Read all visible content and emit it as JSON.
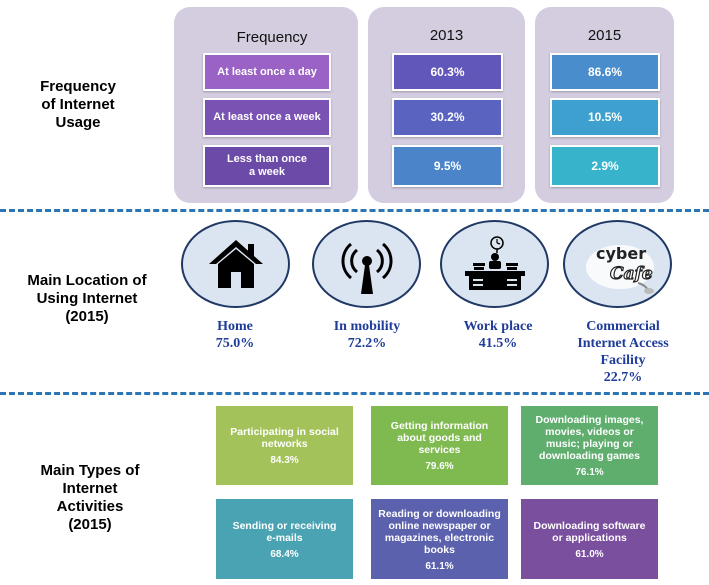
{
  "frequency": {
    "section_label": [
      "Frequency",
      "of Internet",
      "Usage"
    ],
    "headers": {
      "frequency": "Frequency",
      "y2013": "2013",
      "y2015": "2015"
    },
    "rows": [
      {
        "label": [
          "At least once a day"
        ],
        "v2013": "60.3%",
        "v2015": "86.6%"
      },
      {
        "label": [
          "At least once a week"
        ],
        "v2013": "30.2%",
        "v2015": "10.5%"
      },
      {
        "label": [
          "Less than once",
          "a week"
        ],
        "v2013": "9.5%",
        "v2015": "2.9%"
      }
    ],
    "colors": {
      "panel": "#d4cde0",
      "label_cells": [
        "#9a62c4",
        "#7a52b3",
        "#6c4aa8"
      ],
      "cells_2013": [
        "#6157bb",
        "#5a64c0",
        "#4b84c9"
      ],
      "cells_2015": [
        "#4a8dcc",
        "#3da0cf",
        "#38b3cc"
      ]
    }
  },
  "location": {
    "section_label": [
      "Main Location of",
      "Using Internet",
      "(2015)"
    ],
    "items": [
      {
        "icon": "house-icon",
        "name": [
          "Home"
        ],
        "value": "75.0%"
      },
      {
        "icon": "antenna-signal-icon",
        "name": [
          "In mobility"
        ],
        "value": "72.2%"
      },
      {
        "icon": "office-desk-icon",
        "name": [
          "Work place"
        ],
        "value": "41.5%"
      },
      {
        "icon": "cyber-cafe-logo-icon",
        "name": [
          "Commercial",
          "Internet Access",
          "Facility"
        ],
        "value": "22.7%",
        "logo_text": [
          "cyber",
          "Cafe"
        ]
      }
    ]
  },
  "activities": {
    "section_label": [
      "Main Types of",
      "Internet",
      "Activities",
      "(2015)"
    ],
    "items": [
      {
        "text": [
          "Participating in social",
          "networks"
        ],
        "value": "84.3%",
        "color": "#a3c35a"
      },
      {
        "text": [
          "Getting information",
          "about goods and",
          "services"
        ],
        "value": "79.6%",
        "color": "#7fba50"
      },
      {
        "text": [
          "Downloading images,",
          "movies, videos or",
          "music; playing or",
          "downloading games"
        ],
        "value": "76.1%",
        "color": "#5fae6e"
      },
      {
        "text": [
          "Sending or receiving",
          "e-mails"
        ],
        "value": "68.4%",
        "color": "#4aa3b3"
      },
      {
        "text": [
          "Reading or downloading",
          "online newspaper or",
          "magazines, electronic",
          "books"
        ],
        "value": "61.1%",
        "color": "#5b61ad"
      },
      {
        "text": [
          "Downloading software",
          "or applications"
        ],
        "value": "61.0%",
        "color": "#7a4f9e"
      }
    ]
  }
}
